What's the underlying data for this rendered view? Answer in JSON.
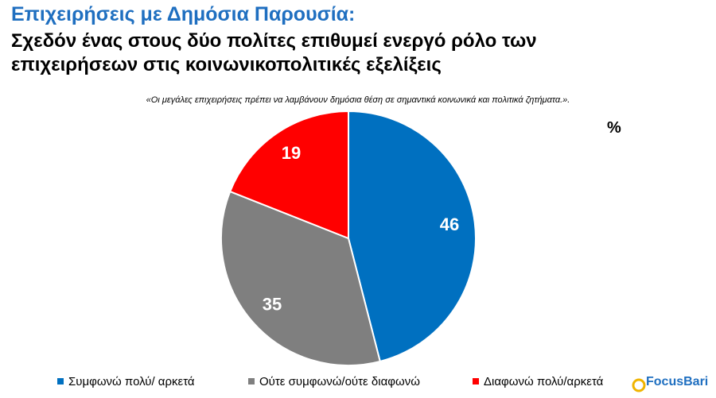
{
  "chart_data": {
    "type": "pie",
    "title": "Επιχειρήσεις με Δημόσια Παρουσία:",
    "subtitle": [
      "Σχεδόν ένας στους δύο πολίτες επιθυμεί ενεργό ρόλο των",
      "επιχειρήσεων στις κοινωνικοπολιτικές εξελίξεις"
    ],
    "question": "«Οι μεγάλες επιχειρήσεις πρέπει να λαμβάνουν δημόσια θέση σε σημαντικά κοινωνικά και πολιτικά ζητήματα.».",
    "unit": "%",
    "categories": [
      "Συμφωνώ πολύ/ αρκετά",
      "Ούτε συμφωνώ/ούτε διαφωνώ",
      "Διαφωνώ πολύ/αρκετά"
    ],
    "values": [
      46,
      35,
      19
    ],
    "colors": [
      "#0070c0",
      "#7f7f7f",
      "#ff0000"
    ],
    "logo": "FocusBari"
  }
}
